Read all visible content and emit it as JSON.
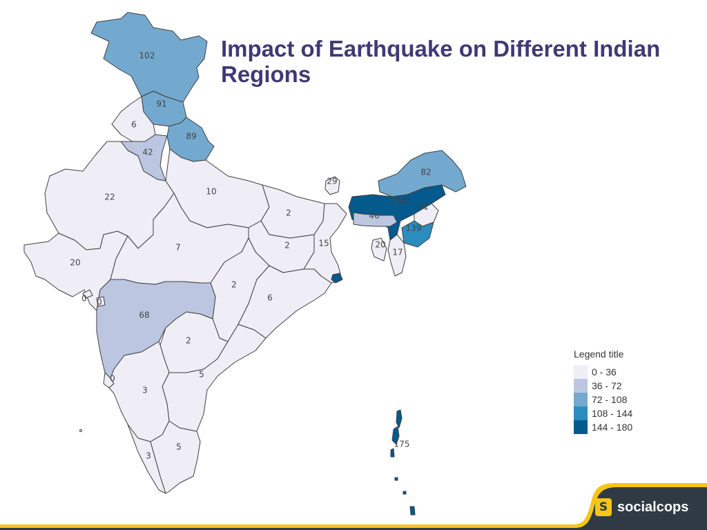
{
  "title": "Impact of Earthquake on Different Indian Regions",
  "legend": {
    "title": "Legend title",
    "bins": [
      {
        "label": "0 - 36",
        "color": "#efedf5"
      },
      {
        "label": "36 - 72",
        "color": "#bcc6e0"
      },
      {
        "label": "72 - 108",
        "color": "#74a9cf"
      },
      {
        "label": "108 - 144",
        "color": "#2b8cbe"
      },
      {
        "label": "144 - 180",
        "color": "#045a8d"
      }
    ]
  },
  "regions": [
    {
      "id": "jammu-kashmir",
      "value": "102"
    },
    {
      "id": "himachal-pradesh",
      "value": "91"
    },
    {
      "id": "punjab",
      "value": "6"
    },
    {
      "id": "haryana",
      "value": "42"
    },
    {
      "id": "uttarakhand",
      "value": "89"
    },
    {
      "id": "rajasthan",
      "value": "22"
    },
    {
      "id": "uttar-pradesh",
      "value": "10"
    },
    {
      "id": "bihar",
      "value": "2"
    },
    {
      "id": "sikkim",
      "value": "29"
    },
    {
      "id": "arunachal-pradesh",
      "value": "82"
    },
    {
      "id": "assam",
      "value": "156"
    },
    {
      "id": "nagaland",
      "value": "21"
    },
    {
      "id": "meghalaya",
      "value": "46"
    },
    {
      "id": "manipur",
      "value": "139"
    },
    {
      "id": "tripura",
      "value": "20"
    },
    {
      "id": "mizoram",
      "value": "17"
    },
    {
      "id": "gujarat",
      "value": "20"
    },
    {
      "id": "madhya-pradesh",
      "value": "7"
    },
    {
      "id": "jharkhand",
      "value": "2"
    },
    {
      "id": "west-bengal",
      "value": "15"
    },
    {
      "id": "chhattisgarh",
      "value": "2"
    },
    {
      "id": "odisha",
      "value": "6"
    },
    {
      "id": "maharashtra",
      "value": "68"
    },
    {
      "id": "daman-diu",
      "value": "0"
    },
    {
      "id": "dadra-nagar-haveli",
      "value": "0"
    },
    {
      "id": "telangana",
      "value": "2"
    },
    {
      "id": "andhra-pradesh",
      "value": "5"
    },
    {
      "id": "goa",
      "value": "0"
    },
    {
      "id": "karnataka",
      "value": "3"
    },
    {
      "id": "kerala",
      "value": "3"
    },
    {
      "id": "tamil-nadu",
      "value": "5"
    },
    {
      "id": "andaman-nicobar",
      "value": "175"
    }
  ],
  "brand": {
    "badge": "S",
    "name": "socialcops",
    "bar_color": "#2f3a45",
    "accent_color": "#f5c518"
  }
}
